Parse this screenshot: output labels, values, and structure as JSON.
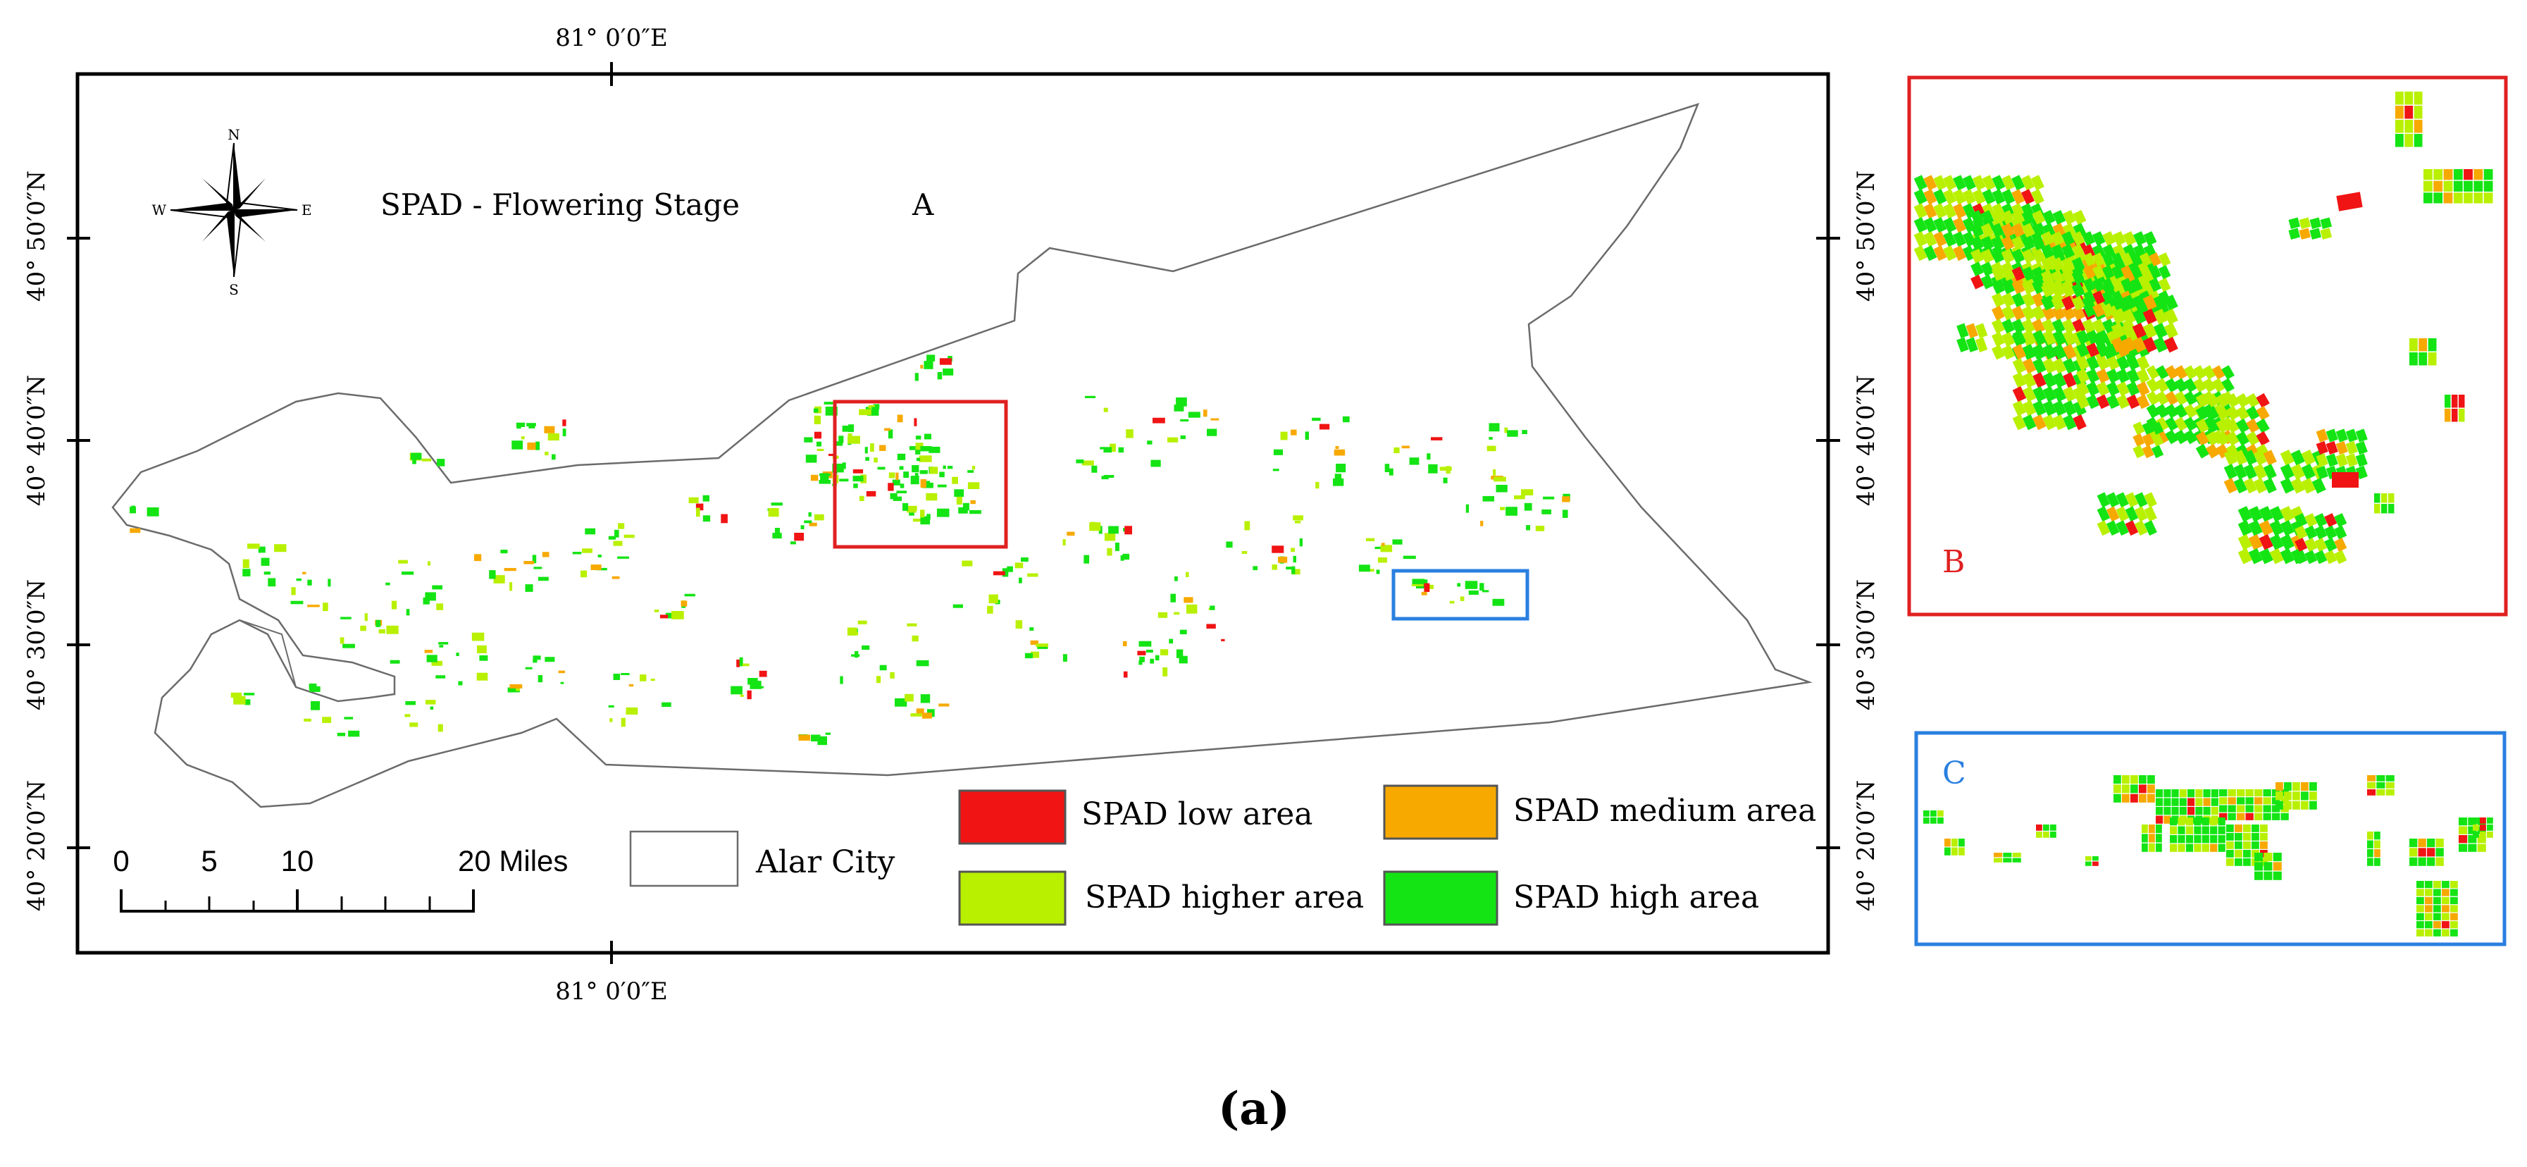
{
  "main_map": {
    "title": "SPAD - Flowering Stage",
    "letter": "A",
    "top_longitude": "81° 0′0″E",
    "bottom_longitude": "81° 0′0″E",
    "left_latitudes": [
      "40° 50′0″N",
      "40° 40′0″N",
      "40° 30′0″N",
      "40° 20′0″N"
    ],
    "right_latitudes": [
      "40° 50′0″N",
      "40° 40′0″N",
      "40° 30′0″N",
      "40° 20′0″N"
    ],
    "compass": {
      "n": "N",
      "s": "S",
      "e": "E",
      "w": "W"
    },
    "scale_bar": {
      "labels": [
        "0",
        "5",
        "10",
        "20 Miles"
      ]
    },
    "city_legend": "Alar City"
  },
  "legend": [
    {
      "label": "SPAD low area",
      "color": "#f01414"
    },
    {
      "label": "SPAD medium area",
      "color": "#f7a900"
    },
    {
      "label": "SPAD higher area",
      "color": "#b8f000"
    },
    {
      "label": "SPAD high area",
      "color": "#14e414"
    }
  ],
  "inset_b": {
    "letter": "B",
    "frame_color": "#e02020"
  },
  "inset_c": {
    "letter": "C",
    "frame_color": "#2a7fe0"
  },
  "caption": "(a)"
}
